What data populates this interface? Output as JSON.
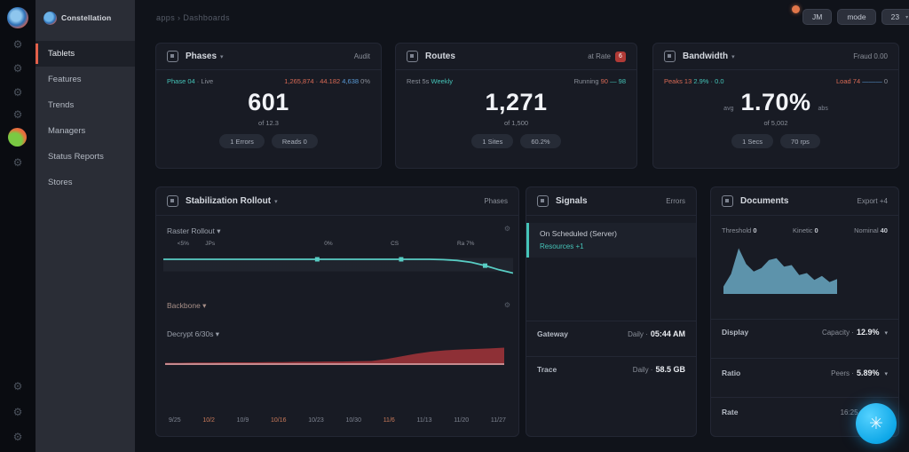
{
  "brand": {
    "name": "Constellation"
  },
  "rail": {
    "top_icons": [
      "logo",
      "gear",
      "nodes",
      "layers",
      "grid",
      "apps",
      "shield"
    ],
    "bottom_icons": [
      "settings",
      "plugin",
      "help"
    ]
  },
  "sidebar": {
    "items": [
      {
        "label": "Tablets"
      },
      {
        "label": "Features"
      },
      {
        "label": "Trends"
      },
      {
        "label": "Managers"
      },
      {
        "label": "Status Reports"
      },
      {
        "label": "Stores"
      }
    ]
  },
  "header": {
    "breadcrumb": "apps › Dashboards",
    "avatar": "JM",
    "mode_label": "mode",
    "count_label": "23",
    "count_caret": "▾"
  },
  "cards": [
    {
      "title": "Phases",
      "caret": "▾",
      "link": "Audit",
      "sub_left_a": "Phase 04",
      "sub_left_b": "· Live",
      "sub_right_a": "1,265,874 · 44.182",
      "sub_right_b": "4,638",
      "sub_right_c": "0%",
      "value": "601",
      "caption": "of 12.3",
      "pills": [
        "1 Errors",
        "Reads 0"
      ]
    },
    {
      "title": "Routes",
      "link": "at Rate",
      "badge": "6",
      "sub_left_a": "Rest 5s",
      "sub_left_b": "Weekly",
      "sub_right_a": "Running",
      "sub_right_b": "90",
      "sub_right_c": "— 98",
      "value": "1,271",
      "caption": "of 1,500",
      "pills": [
        "1 Sites",
        "60.2%"
      ]
    },
    {
      "title": "Bandwidth",
      "caret": "▾",
      "link": "Fraud 0.00",
      "sub_left_a": "Peaks 13",
      "sub_left_b": "2.9% · 0.0",
      "sub_right_a": "Load 74",
      "sub_right_b": "———",
      "sub_right_c": "0",
      "value": "1.70%",
      "value_prefix": "avg",
      "value_suffix": "abs",
      "caption": "of 5,002",
      "pills": [
        "1 Secs",
        "70 rps"
      ]
    }
  ],
  "big_chart": {
    "title": "Stabilization Rollout",
    "caret": "▾",
    "link": "Phases",
    "section1_label": "Raster Rollout ▾",
    "section2_label_a": "Backbone ▾",
    "section2_label_b": "Decrypt 6/30s ▾",
    "gear": "⚙",
    "ticks": [
      "9/25",
      "10/2",
      "10/9",
      "10/16",
      "10/23",
      "10/30",
      "11/6",
      "11/13",
      "11/20",
      "11/27"
    ],
    "orange_ticks": [
      1,
      3,
      6
    ]
  },
  "status_panel": {
    "title": "Signals",
    "link": "Errors",
    "item_title": "On Scheduled (Server)",
    "item_sub": "Resources +1",
    "rows": [
      {
        "label": "Gateway",
        "value_a": "Daily ·",
        "value_b": "05:44 AM"
      },
      {
        "label": "Trace",
        "value_a": "Daily ·",
        "value_b": "58.5 GB"
      }
    ]
  },
  "docs_panel": {
    "title": "Documents",
    "link": "Export +4",
    "stats": [
      {
        "label": "Threshold",
        "value": "0"
      },
      {
        "label": "Kinetic",
        "value": "0"
      },
      {
        "label": "Nominal",
        "value": "40"
      }
    ],
    "rows": [
      {
        "label": "Display",
        "value_a": "Capacity ·",
        "value_b": "12.9%",
        "caret": "▾"
      },
      {
        "label": "Ratio",
        "value_a": "Peers ·",
        "value_b": "5.89%",
        "caret": "▾"
      },
      {
        "label": "Rate",
        "value_a": "16:25 ·",
        "value_b": "1.19%",
        "caret": ""
      }
    ]
  },
  "fab": {
    "icon": "✳"
  },
  "colors": {
    "accent_teal": "#45c4b8",
    "accent_salmon": "#d96a55",
    "accent_blue": "#5a9bd8",
    "accent_orange": "#e2604a",
    "fab_blue": "#1db8f5",
    "area_red": "#8e3036",
    "area_red_baseline": "#d8a7ab",
    "area_blue": "#5d93ab",
    "line_teal": "#58cdc4"
  },
  "chart_data": [
    {
      "id": "rollout-line",
      "type": "line",
      "color": "#58cdc4",
      "title": "Raster Rollout",
      "legend_position": "none",
      "grid": false,
      "ylim": [
        0,
        100
      ],
      "values": [
        50,
        50,
        50,
        50,
        50,
        50,
        50,
        50,
        50,
        50,
        50,
        50,
        50,
        50,
        50,
        50,
        50,
        50,
        50,
        50,
        49,
        47,
        42,
        33,
        22,
        13
      ],
      "markers": [
        11,
        17,
        23
      ],
      "annotations": [
        {
          "text": "<5%",
          "x": 4
        },
        {
          "text": "JPs",
          "x": 12
        },
        {
          "text": "0%",
          "x": 46
        },
        {
          "text": "CS",
          "x": 65
        },
        {
          "text": "Ra 7%",
          "x": 84
        }
      ]
    },
    {
      "id": "error-area",
      "type": "area",
      "color": "#8e3036",
      "baseline_color": "#d8a7ab",
      "title": "Decrypt 6/30s",
      "grid": false,
      "ylim": [
        0,
        100
      ],
      "values": [
        8,
        8,
        9,
        9,
        10,
        10,
        10,
        11,
        11,
        12,
        12,
        13,
        13,
        14,
        15,
        22,
        32,
        42,
        50,
        55,
        58,
        60,
        62,
        65
      ]
    },
    {
      "id": "volume-area",
      "type": "area",
      "color": "#5d93ab",
      "title": "Documents volume",
      "grid": false,
      "ylim": [
        0,
        100
      ],
      "values": [
        15,
        40,
        92,
        60,
        45,
        52,
        68,
        72,
        55,
        58,
        38,
        42,
        28,
        36,
        24,
        30
      ]
    }
  ]
}
